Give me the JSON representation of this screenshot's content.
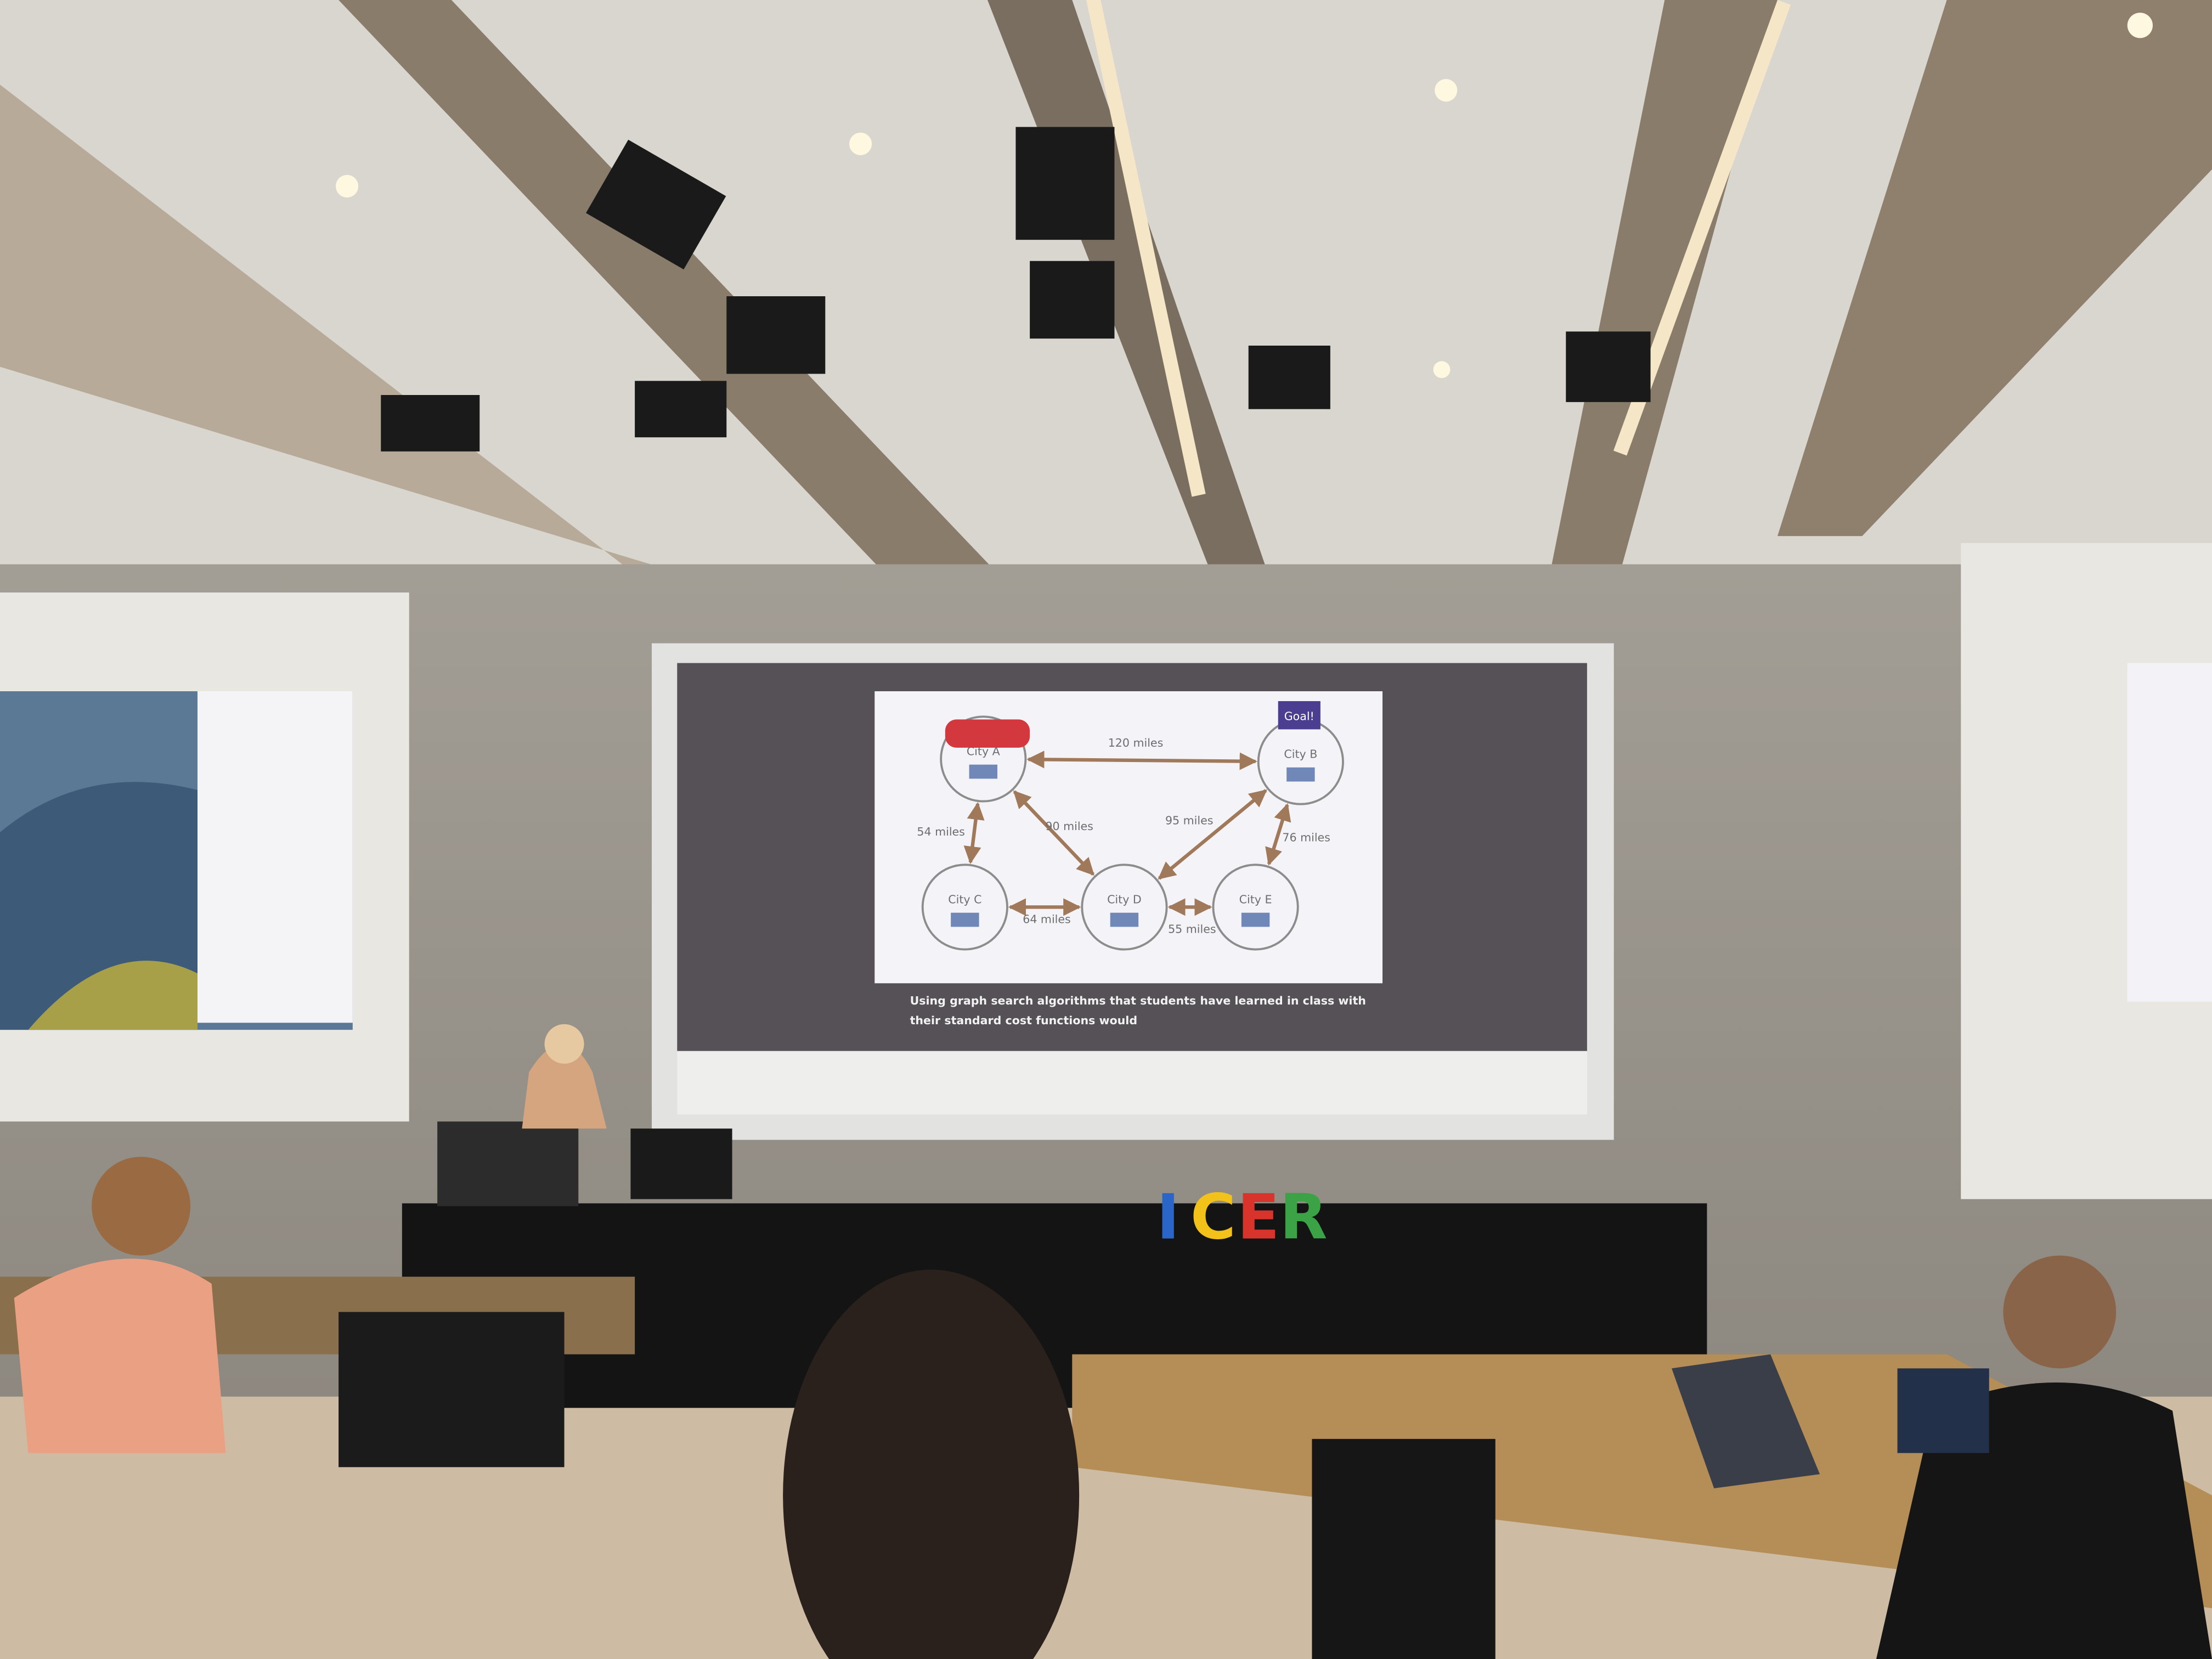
{
  "slide": {
    "goal_flag": "Goal!",
    "nodes": [
      {
        "label": "City A"
      },
      {
        "label": "City B"
      },
      {
        "label": "City C"
      },
      {
        "label": "City D"
      },
      {
        "label": "City E"
      }
    ],
    "edges": [
      {
        "label": "120 miles"
      },
      {
        "label": "54 miles"
      },
      {
        "label": "90 miles"
      },
      {
        "label": "95 miles"
      },
      {
        "label": "76 miles"
      },
      {
        "label": "64 miles"
      },
      {
        "label": "55 miles"
      }
    ],
    "caption": [
      "Using graph search algorithms that students have learned in class with",
      "their standard cost functions would"
    ]
  },
  "stage_sign": [
    "I",
    "C",
    "E",
    "R"
  ]
}
